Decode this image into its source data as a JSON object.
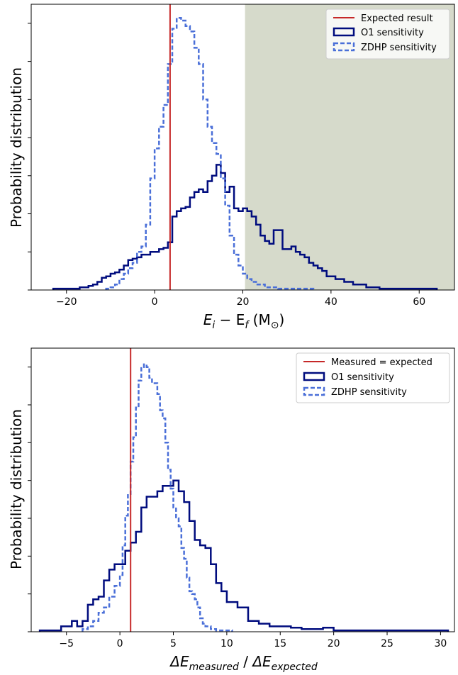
{
  "chart_data": [
    {
      "type": "histogram-step",
      "xlabel_parts": {
        "base": "E",
        "sub1": "i",
        "minus": " − E",
        "sub2": "f",
        "unit_open": " (M",
        "unit_sub": "⊙",
        "unit_close": ")"
      },
      "ylabel": "Probability distribution",
      "xlim": [
        -28,
        68
      ],
      "ylim": [
        0,
        1.05
      ],
      "xticks": [
        -20,
        0,
        20,
        40,
        60
      ],
      "xtick_labels": [
        "−20",
        "0",
        "20",
        "40",
        "60"
      ],
      "yticks": [
        0,
        0.14,
        0.28,
        0.42,
        0.56,
        0.7,
        0.84,
        0.98
      ],
      "shaded_region": {
        "x_start": 20.5,
        "x_end": 68,
        "color": "#d6dacb"
      },
      "vline": {
        "x": 3.5,
        "name": "Expected result",
        "color": "#c62828"
      },
      "legend_position": "top-right",
      "series": [
        {
          "name": "O1 sensitivity",
          "color": "#000c7e",
          "dash": false,
          "edges": [
            -23,
            -22,
            -21,
            -20,
            -19,
            -18,
            -17,
            -16,
            -15,
            -14,
            -13,
            -12,
            -11,
            -10,
            -9,
            -8,
            -7,
            -6,
            -5,
            -4,
            -3,
            -2,
            -1,
            0,
            1,
            2,
            3,
            4,
            5,
            6,
            7,
            8,
            9,
            10,
            11,
            12,
            13,
            14,
            15,
            16,
            17,
            18,
            19,
            20,
            21,
            22,
            23,
            24,
            25,
            26,
            27,
            28,
            29,
            30,
            31,
            32,
            33,
            34,
            35,
            36,
            37,
            38,
            39,
            40,
            41,
            42,
            43,
            44,
            45,
            46,
            47,
            48,
            49,
            50,
            51,
            52,
            53,
            54,
            55,
            56,
            57,
            58,
            59,
            60,
            61,
            62,
            63,
            64
          ],
          "values": [
            0.005,
            0.005,
            0.005,
            0.005,
            0.005,
            0.005,
            0.01,
            0.01,
            0.015,
            0.02,
            0.03,
            0.045,
            0.05,
            0.06,
            0.065,
            0.075,
            0.09,
            0.11,
            0.115,
            0.12,
            0.13,
            0.13,
            0.14,
            0.14,
            0.15,
            0.155,
            0.175,
            0.27,
            0.29,
            0.3,
            0.305,
            0.34,
            0.36,
            0.37,
            0.36,
            0.4,
            0.42,
            0.46,
            0.43,
            0.36,
            0.38,
            0.3,
            0.29,
            0.3,
            0.29,
            0.27,
            0.24,
            0.2,
            0.18,
            0.17,
            0.22,
            0.22,
            0.15,
            0.15,
            0.16,
            0.14,
            0.13,
            0.12,
            0.1,
            0.09,
            0.08,
            0.07,
            0.05,
            0.05,
            0.04,
            0.04,
            0.03,
            0.03,
            0.02,
            0.02,
            0.02,
            0.01,
            0.01,
            0.01,
            0.005,
            0.005,
            0.005,
            0.005,
            0.005,
            0.005,
            0.005,
            0.005,
            0.005,
            0.005,
            0.005,
            0.005,
            0.005
          ]
        },
        {
          "name": "ZDHP sensitivity",
          "color": "#4a6fd8",
          "dash": true,
          "edges": [
            -11,
            -10,
            -9,
            -8,
            -7,
            -6,
            -5,
            -4,
            -3,
            -2,
            -1,
            0,
            1,
            2,
            3,
            4,
            5,
            6,
            7,
            8,
            9,
            10,
            11,
            12,
            13,
            14,
            15,
            16,
            17,
            18,
            19,
            20,
            21,
            22,
            23,
            24,
            25,
            26,
            27,
            28,
            29,
            30,
            31,
            32,
            33,
            34,
            35,
            36
          ],
          "values": [
            0.005,
            0.01,
            0.02,
            0.04,
            0.06,
            0.08,
            0.1,
            0.14,
            0.16,
            0.24,
            0.41,
            0.52,
            0.6,
            0.68,
            0.83,
            0.96,
            1.0,
            0.99,
            0.97,
            0.95,
            0.89,
            0.83,
            0.7,
            0.6,
            0.54,
            0.5,
            0.41,
            0.31,
            0.2,
            0.13,
            0.09,
            0.06,
            0.04,
            0.03,
            0.02,
            0.02,
            0.01,
            0.01,
            0.01,
            0.005,
            0.005,
            0.005,
            0.005,
            0.005,
            0.005,
            0.005,
            0.005
          ]
        }
      ]
    },
    {
      "type": "histogram-step",
      "xlabel_parts": {
        "delta1": "ΔE",
        "sub1": "measured",
        "slash": " / ",
        "delta2": "ΔE",
        "sub2": "expected"
      },
      "ylabel": "Probability distribution",
      "xlim": [
        -8.3,
        31.3
      ],
      "ylim": [
        0,
        1.05
      ],
      "xticks": [
        -5,
        0,
        5,
        10,
        15,
        20,
        25,
        30
      ],
      "xtick_labels": [
        "−5",
        "0",
        "5",
        "10",
        "15",
        "20",
        "25",
        "30"
      ],
      "yticks": [
        0,
        0.14,
        0.28,
        0.42,
        0.56,
        0.7,
        0.84,
        0.98
      ],
      "vline": {
        "x": 1,
        "name": "Measured = expected",
        "color": "#c62828"
      },
      "legend_position": "top-right",
      "series": [
        {
          "name": "O1 sensitivity",
          "color": "#000c7e",
          "dash": false,
          "edges": [
            -7.5,
            -6.5,
            -5.5,
            -4.5,
            -4,
            -3.5,
            -3,
            -2.5,
            -2,
            -1.5,
            -1,
            -0.5,
            0,
            0.5,
            1,
            1.5,
            2,
            2.5,
            3,
            3.5,
            4,
            4.5,
            5,
            5.5,
            6,
            6.5,
            7,
            7.5,
            8,
            8.5,
            9,
            9.5,
            10,
            11,
            12,
            13,
            14,
            15,
            16,
            17,
            18,
            19,
            20,
            21,
            22,
            23,
            24,
            25,
            26,
            27,
            28,
            29,
            30,
            30.7
          ],
          "values": [
            0.005,
            0.005,
            0.02,
            0.04,
            0.02,
            0.04,
            0.1,
            0.12,
            0.13,
            0.19,
            0.23,
            0.25,
            0.25,
            0.3,
            0.33,
            0.37,
            0.46,
            0.5,
            0.5,
            0.52,
            0.54,
            0.54,
            0.56,
            0.52,
            0.48,
            0.41,
            0.34,
            0.32,
            0.31,
            0.25,
            0.18,
            0.15,
            0.11,
            0.09,
            0.04,
            0.03,
            0.02,
            0.02,
            0.015,
            0.01,
            0.01,
            0.015,
            0.005,
            0.005,
            0.005,
            0.005,
            0.005,
            0.005,
            0.005,
            0.005,
            0.005,
            0.005,
            0.005
          ]
        },
        {
          "name": "ZDHP sensitivity",
          "color": "#4a6fd8",
          "dash": true,
          "edges": [
            -3.5,
            -3,
            -2.5,
            -2,
            -1.5,
            -1,
            -0.5,
            0,
            0.25,
            0.5,
            0.75,
            1,
            1.25,
            1.5,
            1.75,
            2,
            2.25,
            2.5,
            2.75,
            3,
            3.25,
            3.5,
            3.75,
            4,
            4.25,
            4.5,
            4.75,
            5,
            5.25,
            5.5,
            5.75,
            6,
            6.25,
            6.5,
            6.75,
            7,
            7.25,
            7.5,
            7.75,
            8,
            8.5,
            9,
            9.5,
            10,
            10.5
          ],
          "values": [
            0.01,
            0.02,
            0.04,
            0.07,
            0.09,
            0.13,
            0.17,
            0.21,
            0.32,
            0.43,
            0.51,
            0.63,
            0.72,
            0.83,
            0.93,
            0.98,
            0.99,
            0.98,
            0.94,
            0.92,
            0.92,
            0.88,
            0.82,
            0.79,
            0.7,
            0.6,
            0.53,
            0.46,
            0.42,
            0.39,
            0.31,
            0.27,
            0.2,
            0.15,
            0.14,
            0.12,
            0.09,
            0.05,
            0.03,
            0.02,
            0.01,
            0.005,
            0.005,
            0.005
          ]
        }
      ]
    }
  ]
}
